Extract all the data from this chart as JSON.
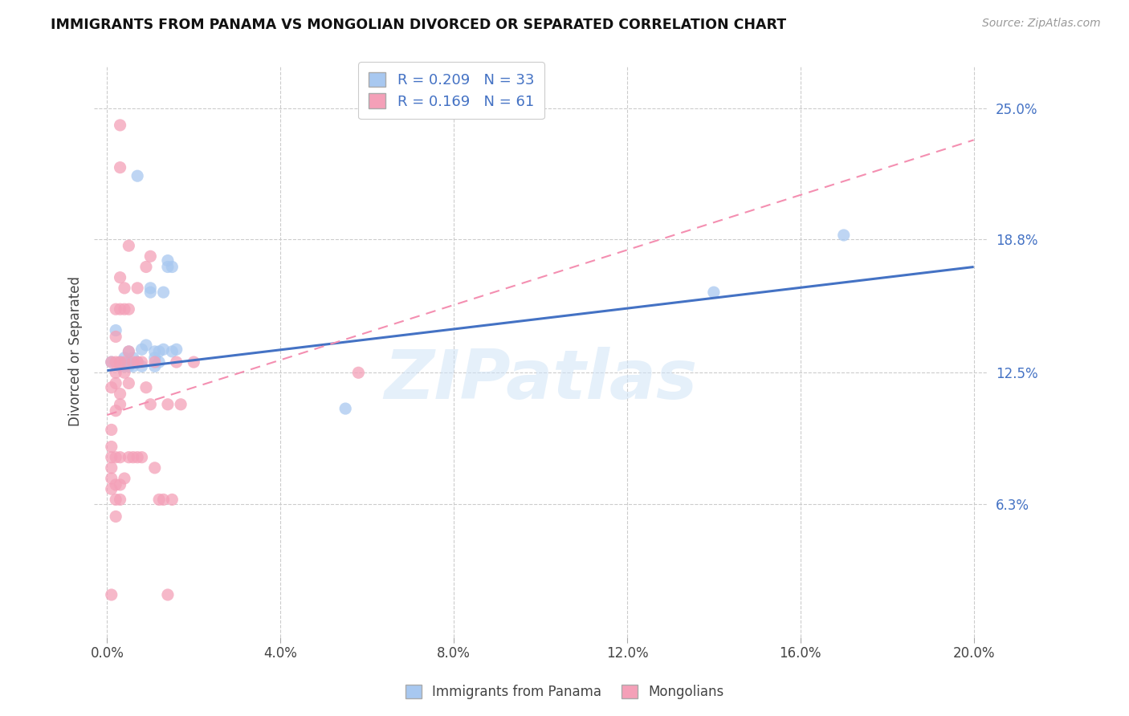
{
  "title": "IMMIGRANTS FROM PANAMA VS MONGOLIAN DIVORCED OR SEPARATED CORRELATION CHART",
  "source": "Source: ZipAtlas.com",
  "xlabel_ticks": [
    "0.0%",
    "4.0%",
    "8.0%",
    "12.0%",
    "16.0%",
    "20.0%"
  ],
  "xlabel_vals": [
    0.0,
    0.04,
    0.08,
    0.12,
    0.16,
    0.2
  ],
  "ylabel_ticks": [
    "6.3%",
    "12.5%",
    "18.8%",
    "25.0%"
  ],
  "ylabel_vals": [
    0.063,
    0.125,
    0.188,
    0.25
  ],
  "ylabel_label": "Divorced or Separated",
  "legend_label1": "Immigrants from Panama",
  "legend_label2": "Mongolians",
  "R1": "0.209",
  "N1": "33",
  "R2": "0.169",
  "N2": "61",
  "color_blue": "#a8c8f0",
  "color_pink": "#f4a0b8",
  "trendline_blue": "#4472c4",
  "trendline_pink": "#f48fb1",
  "watermark": "ZIPatlas",
  "blue_points": [
    [
      0.001,
      0.13
    ],
    [
      0.002,
      0.145
    ],
    [
      0.003,
      0.128
    ],
    [
      0.003,
      0.13
    ],
    [
      0.004,
      0.132
    ],
    [
      0.004,
      0.128
    ],
    [
      0.005,
      0.13
    ],
    [
      0.005,
      0.128
    ],
    [
      0.005,
      0.135
    ],
    [
      0.006,
      0.132
    ],
    [
      0.006,
      0.128
    ],
    [
      0.007,
      0.13
    ],
    [
      0.007,
      0.218
    ],
    [
      0.008,
      0.128
    ],
    [
      0.008,
      0.136
    ],
    [
      0.009,
      0.138
    ],
    [
      0.01,
      0.163
    ],
    [
      0.01,
      0.165
    ],
    [
      0.011,
      0.128
    ],
    [
      0.011,
      0.135
    ],
    [
      0.011,
      0.132
    ],
    [
      0.012,
      0.135
    ],
    [
      0.012,
      0.13
    ],
    [
      0.013,
      0.136
    ],
    [
      0.013,
      0.163
    ],
    [
      0.014,
      0.175
    ],
    [
      0.014,
      0.178
    ],
    [
      0.015,
      0.175
    ],
    [
      0.015,
      0.135
    ],
    [
      0.016,
      0.136
    ],
    [
      0.055,
      0.108
    ],
    [
      0.14,
      0.163
    ],
    [
      0.17,
      0.19
    ]
  ],
  "pink_points": [
    [
      0.001,
      0.13
    ],
    [
      0.001,
      0.118
    ],
    [
      0.001,
      0.098
    ],
    [
      0.001,
      0.09
    ],
    [
      0.001,
      0.085
    ],
    [
      0.001,
      0.08
    ],
    [
      0.001,
      0.075
    ],
    [
      0.001,
      0.07
    ],
    [
      0.002,
      0.155
    ],
    [
      0.002,
      0.142
    ],
    [
      0.002,
      0.13
    ],
    [
      0.002,
      0.125
    ],
    [
      0.002,
      0.12
    ],
    [
      0.002,
      0.107
    ],
    [
      0.002,
      0.085
    ],
    [
      0.002,
      0.072
    ],
    [
      0.002,
      0.065
    ],
    [
      0.002,
      0.057
    ],
    [
      0.003,
      0.242
    ],
    [
      0.003,
      0.222
    ],
    [
      0.003,
      0.17
    ],
    [
      0.003,
      0.155
    ],
    [
      0.003,
      0.13
    ],
    [
      0.003,
      0.115
    ],
    [
      0.003,
      0.11
    ],
    [
      0.003,
      0.085
    ],
    [
      0.003,
      0.072
    ],
    [
      0.003,
      0.065
    ],
    [
      0.004,
      0.165
    ],
    [
      0.004,
      0.155
    ],
    [
      0.004,
      0.13
    ],
    [
      0.004,
      0.125
    ],
    [
      0.004,
      0.075
    ],
    [
      0.005,
      0.185
    ],
    [
      0.005,
      0.155
    ],
    [
      0.005,
      0.135
    ],
    [
      0.005,
      0.12
    ],
    [
      0.005,
      0.085
    ],
    [
      0.006,
      0.13
    ],
    [
      0.006,
      0.085
    ],
    [
      0.007,
      0.165
    ],
    [
      0.007,
      0.13
    ],
    [
      0.007,
      0.085
    ],
    [
      0.008,
      0.13
    ],
    [
      0.008,
      0.085
    ],
    [
      0.009,
      0.175
    ],
    [
      0.009,
      0.118
    ],
    [
      0.01,
      0.18
    ],
    [
      0.01,
      0.11
    ],
    [
      0.011,
      0.13
    ],
    [
      0.011,
      0.08
    ],
    [
      0.012,
      0.065
    ],
    [
      0.013,
      0.065
    ],
    [
      0.014,
      0.11
    ],
    [
      0.015,
      0.065
    ],
    [
      0.016,
      0.13
    ],
    [
      0.017,
      0.11
    ],
    [
      0.02,
      0.13
    ],
    [
      0.058,
      0.125
    ],
    [
      0.001,
      0.02
    ],
    [
      0.014,
      0.02
    ]
  ],
  "blue_trendline": [
    [
      0.0,
      0.126
    ],
    [
      0.2,
      0.175
    ]
  ],
  "pink_trendline": [
    [
      0.0,
      0.105
    ],
    [
      0.2,
      0.235
    ]
  ]
}
